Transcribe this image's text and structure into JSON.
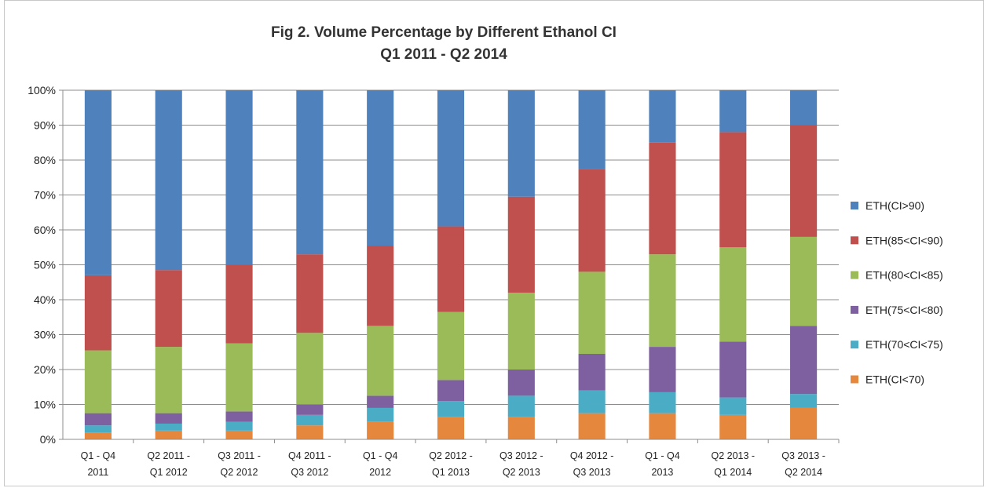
{
  "chart_data": {
    "type": "bar",
    "stacked": true,
    "title": "Fig 2. Volume Percentage by Different Ethanol CI",
    "subtitle": "Q1 2011 - Q2 2014",
    "ylim": [
      0,
      100
    ],
    "yticks": [
      "0%",
      "10%",
      "20%",
      "30%",
      "40%",
      "50%",
      "60%",
      "70%",
      "80%",
      "90%",
      "100%"
    ],
    "grid": true,
    "legend_position": "right",
    "categories": [
      [
        "Q1 - Q4",
        "2011"
      ],
      [
        "Q2 2011 -",
        "Q1 2012"
      ],
      [
        "Q3 2011 -",
        "Q2 2012"
      ],
      [
        "Q4 2011 -",
        "Q3 2012"
      ],
      [
        "Q1 - Q4",
        "2012"
      ],
      [
        "Q2 2012 -",
        "Q1 2013"
      ],
      [
        "Q3 2012 -",
        "Q2 2013"
      ],
      [
        "Q4 2012 -",
        "Q3 2013"
      ],
      [
        "Q1 - Q4",
        "2013"
      ],
      [
        "Q2 2013 -",
        "Q1 2014"
      ],
      [
        "Q3 2013 -",
        "Q2 2014"
      ]
    ],
    "series": [
      {
        "name": "ETH(CI<70)",
        "color": "#E6873E",
        "values": [
          2,
          2.5,
          2.5,
          4,
          5,
          6.5,
          6.5,
          7.5,
          7.5,
          7,
          9
        ]
      },
      {
        "name": "ETH(70<CI<75)",
        "color": "#4BACC6",
        "values": [
          2,
          2,
          2.5,
          3,
          4,
          4.5,
          6,
          6.5,
          6,
          5,
          4
        ]
      },
      {
        "name": "ETH(75<CI<80)",
        "color": "#7E60A0",
        "values": [
          3.5,
          3,
          3,
          3,
          3.5,
          6,
          7.5,
          10.5,
          13,
          16,
          19.5
        ]
      },
      {
        "name": "ETH(80<CI<85)",
        "color": "#9BBB59",
        "values": [
          18,
          19,
          19.5,
          20.5,
          20,
          19.5,
          22,
          23.5,
          26.5,
          27,
          25.5
        ]
      },
      {
        "name": "ETH(85<CI<90)",
        "color": "#C0504D",
        "values": [
          21.5,
          22,
          22.5,
          22.5,
          23,
          24.5,
          27.5,
          29.5,
          32,
          33,
          32
        ]
      },
      {
        "name": "ETH(CI>90)",
        "color": "#4F81BD",
        "values": [
          53,
          51.5,
          50,
          47,
          44.5,
          39,
          30.5,
          22.5,
          15,
          12,
          10
        ]
      }
    ],
    "legend_order": [
      "ETH(CI>90)",
      "ETH(85<CI<90)",
      "ETH(80<CI<85)",
      "ETH(75<CI<80)",
      "ETH(70<CI<75)",
      "ETH(CI<70)"
    ]
  }
}
